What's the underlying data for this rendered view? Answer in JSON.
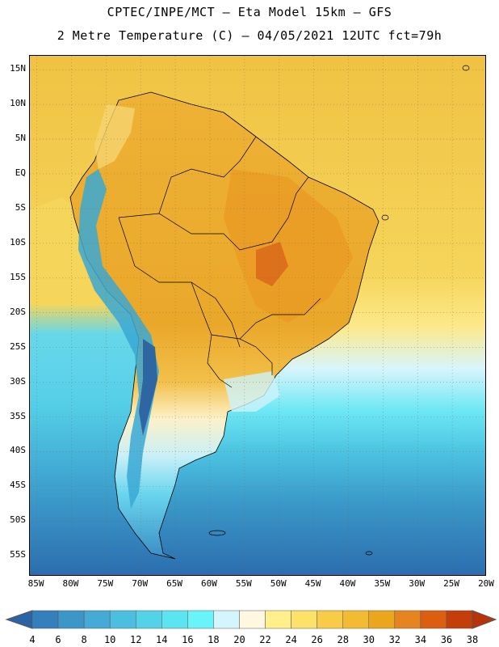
{
  "header": {
    "title_line1": "CPTEC/INPE/MCT –  Eta Model 15km – GFS",
    "title_line2": "2 Metre Temperature (C) – 04/05/2021 12UTC fct=79h"
  },
  "map": {
    "lat_labels": [
      "15N",
      "10N",
      "5N",
      "EQ",
      "5S",
      "10S",
      "15S",
      "20S",
      "25S",
      "30S",
      "35S",
      "40S",
      "45S",
      "50S",
      "55S"
    ],
    "lon_labels": [
      "85W",
      "80W",
      "75W",
      "70W",
      "65W",
      "60W",
      "55W",
      "50W",
      "45W",
      "40W",
      "35W",
      "30W",
      "25W",
      "20W"
    ],
    "colors": {
      "ocean_warm": "#f2c74a",
      "ocean_mid": "#f5dd6a",
      "ocean_cool": "#fff3a8",
      "cream": "#fdf3d8",
      "land_hot": "#ebab2b",
      "land_very_hot": "#e07d1a",
      "andes": "#2c6fae"
    }
  },
  "colorbar": {
    "ticks": [
      "4",
      "6",
      "8",
      "10",
      "12",
      "14",
      "16",
      "18",
      "20",
      "22",
      "24",
      "26",
      "28",
      "30",
      "32",
      "34",
      "36",
      "38"
    ],
    "colors": [
      "#2a64a6",
      "#3580bc",
      "#3c96c8",
      "#45aad6",
      "#4cbfe0",
      "#54d2e8",
      "#5ce4f0",
      "#68f4f8",
      "#d2f6fc",
      "#fff8e0",
      "#fff08c",
      "#fde26a",
      "#f8cc48",
      "#f2bb33",
      "#eca61e",
      "#e68420",
      "#dc5e10",
      "#c43e0a",
      "#b8330a"
    ]
  }
}
